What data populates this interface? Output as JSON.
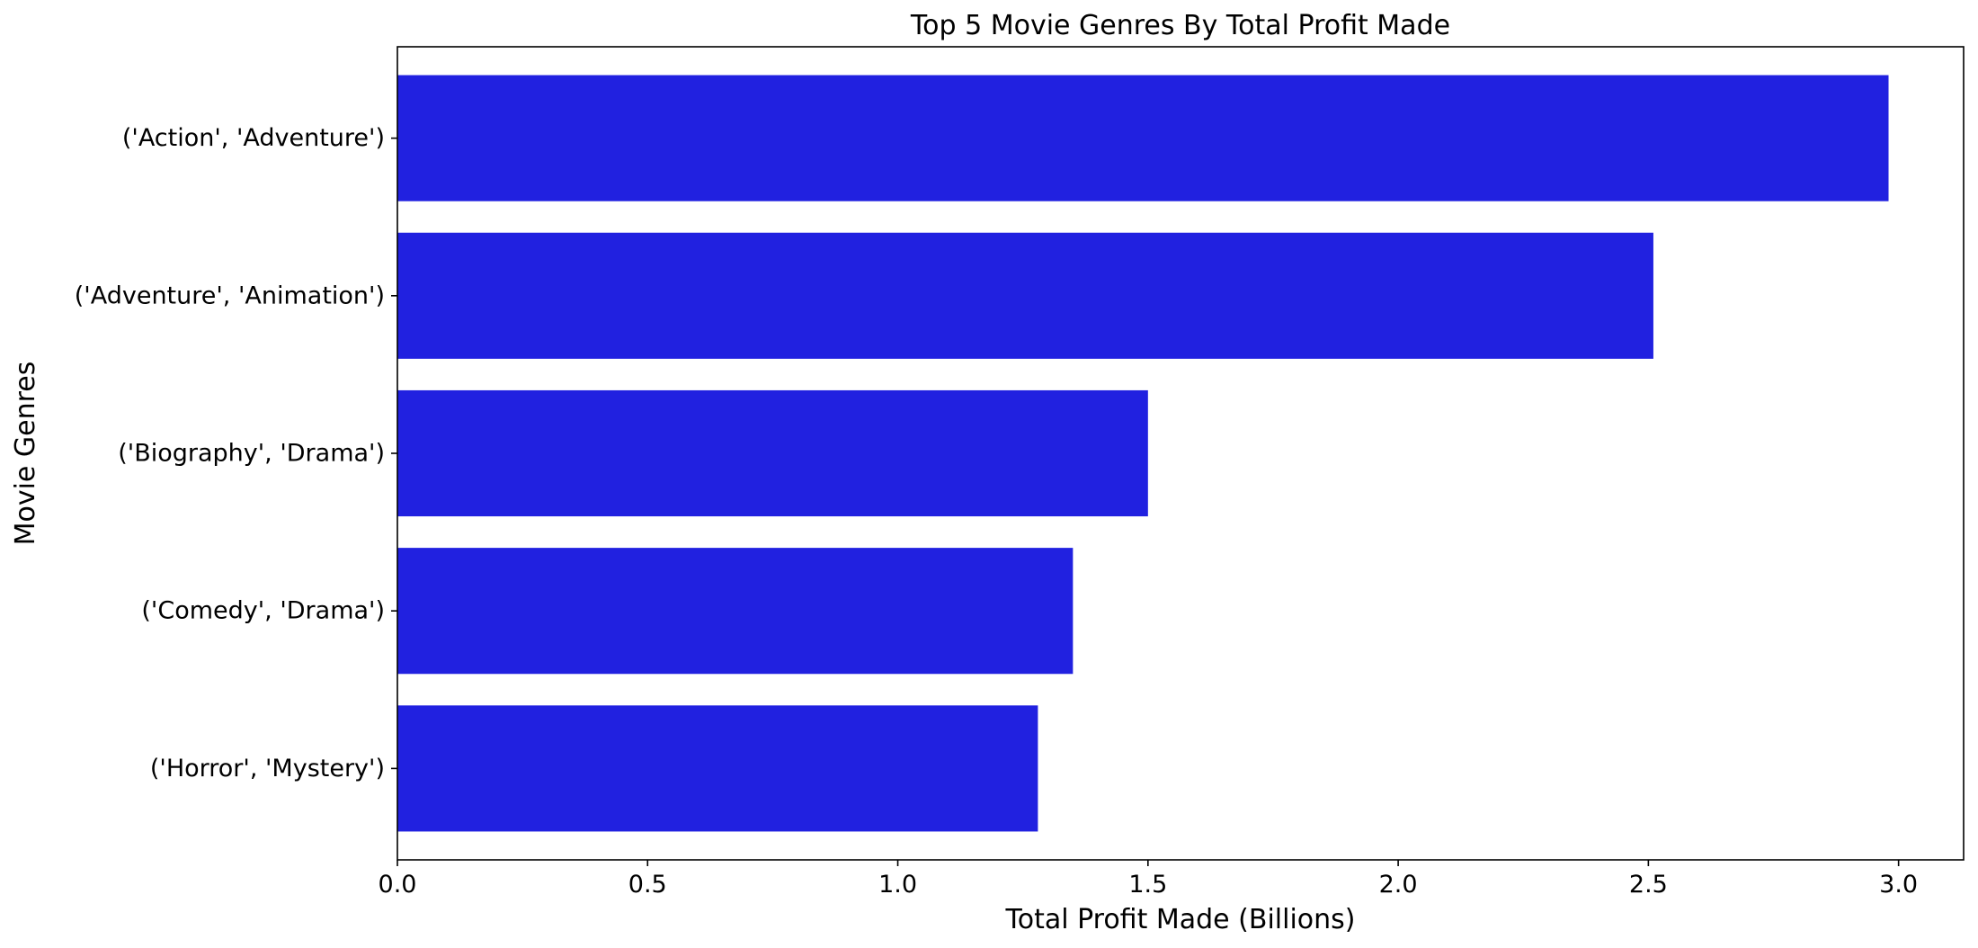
{
  "chart_data": {
    "type": "bar",
    "orientation": "horizontal",
    "title": "Top 5 Movie Genres By Total Profit Made",
    "xlabel": "Total Profit Made (Billions)",
    "ylabel": "Movie Genres",
    "categories": [
      "('Action', 'Adventure')",
      "('Adventure', 'Animation')",
      "('Biography', 'Drama')",
      "('Comedy', 'Drama')",
      "('Horror', 'Mystery')"
    ],
    "values": [
      2.98,
      2.51,
      1.5,
      1.35,
      1.28
    ],
    "xlim": [
      0,
      3.13
    ],
    "xticks": [
      0.0,
      0.5,
      1.0,
      1.5,
      2.0,
      2.5,
      3.0
    ],
    "xtick_labels": [
      "0.0",
      "0.5",
      "1.0",
      "1.5",
      "2.0",
      "2.5",
      "3.0"
    ],
    "bar_color": "#2121e0",
    "grid": false,
    "legend": "none"
  }
}
